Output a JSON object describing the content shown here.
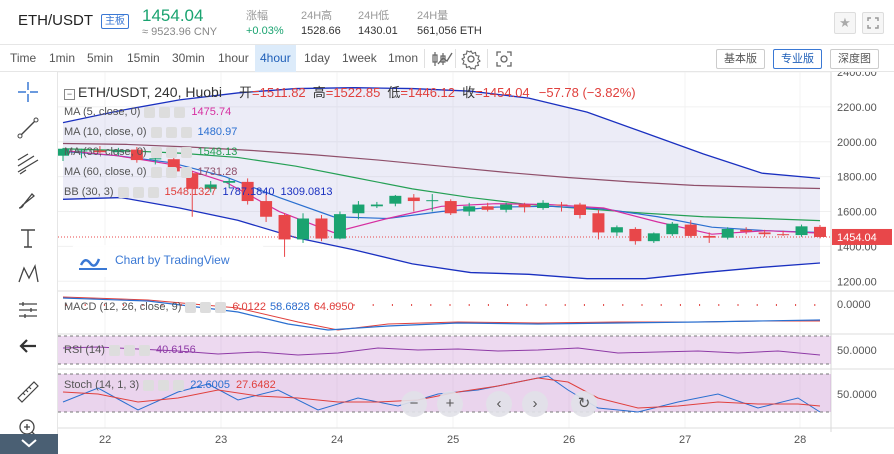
{
  "header": {
    "pair": "ETH/USDT",
    "badge": "主板",
    "price": "1454.04",
    "price_cny": "≈ 9523.96 CNY",
    "stats": [
      {
        "label": "涨幅",
        "value": "+0.03%",
        "color": "#1aa370"
      },
      {
        "label": "24H高",
        "value": "1528.66",
        "color": "#333333"
      },
      {
        "label": "24H低",
        "value": "1430.01",
        "color": "#333333"
      },
      {
        "label": "24H量",
        "value": "561,056 ETH",
        "color": "#333333"
      }
    ],
    "star_icon": "star-icon",
    "fullscreen_icon": "fullscreen-icon"
  },
  "toolbar": {
    "intervals": [
      "Time",
      "1min",
      "5min",
      "15min",
      "30min",
      "1hour",
      "4hour",
      "1day",
      "1week",
      "1mon"
    ],
    "active_interval": "4hour",
    "icons": [
      "candle-style-icon",
      "indicators-icon",
      "settings-gear-icon",
      "screenshot-icon"
    ],
    "views": [
      "基本版",
      "专业版",
      "深度图"
    ],
    "active_view": "专业版"
  },
  "left_tools": [
    "crosshair-icon",
    "trend-line-icon",
    "fib-icon",
    "brush-icon",
    "text-icon",
    "pattern-icon",
    "measure-icon",
    "back-arrow-icon",
    "ruler-icon",
    "zoom-in-icon",
    "collapse-icon"
  ],
  "legend": {
    "main": "ETH/USDT, 240, Huobi",
    "ohlc": {
      "open_label": "开",
      "open": "=1511.82",
      "high_label": "高",
      "high": "=1522.85",
      "low_label": "低",
      "low": "=1446.12",
      "close_label": "收",
      "close": "=1454.04",
      "change": "−57.78 (−3.82%)"
    },
    "ma5": {
      "label": "MA (5, close, 0)",
      "value": "1475.74",
      "color": "#d62ea0"
    },
    "ma10": {
      "label": "MA (10, close, 0)",
      "value": "1480.97",
      "color": "#2a6fd0"
    },
    "ma30": {
      "label": "MA (30, close, 0)",
      "value": "1548.13",
      "color": "#25a055"
    },
    "ma60": {
      "label": "MA (60, close, 0)",
      "value": "1731.28",
      "color": "#8f4f6a"
    },
    "bb": {
      "label": "BB (30, 3)",
      "v1": "1548.1327",
      "v2": "1787.1840",
      "v3": "1309.0813",
      "color": "#1a30c0"
    },
    "macd": {
      "label": "MACD (12, 26, close, 9)",
      "v1": "6.0122",
      "v2": "58.6828",
      "v3": "64.6950"
    },
    "rsi": {
      "label": "RSI (14)",
      "value": "40.6156"
    },
    "stoch": {
      "label": "Stoch (14, 1, 3)",
      "v1": "22.6005",
      "v2": "27.6482"
    }
  },
  "tradingview": "Chart by TradingView",
  "chart_data": {
    "type": "candlestick",
    "symbol": "ETH/USDT",
    "interval": "240",
    "exchange": "Huobi",
    "ylim": [
      1150,
      2400
    ],
    "y_ticks": [
      "2400.00",
      "2200.00",
      "2000.00",
      "1800.00",
      "1600.00",
      "1400.00",
      "1200.00"
    ],
    "x_ticks": [
      "22",
      "23",
      "24",
      "25",
      "26",
      "27",
      "28"
    ],
    "last_price_label": "1454.04",
    "candles": [
      {
        "o": 1920,
        "h": 1965,
        "l": 1890,
        "c": 1960
      },
      {
        "o": 1945,
        "h": 1960,
        "l": 1905,
        "c": 1950
      },
      {
        "o": 1950,
        "h": 1975,
        "l": 1935,
        "c": 1940
      },
      {
        "o": 1940,
        "h": 1965,
        "l": 1920,
        "c": 1950
      },
      {
        "o": 1955,
        "h": 1970,
        "l": 1880,
        "c": 1895
      },
      {
        "o": 1900,
        "h": 1915,
        "l": 1870,
        "c": 1905
      },
      {
        "o": 1900,
        "h": 1915,
        "l": 1800,
        "c": 1830
      },
      {
        "o": 1820,
        "h": 1830,
        "l": 1570,
        "c": 1730
      },
      {
        "o": 1730,
        "h": 1775,
        "l": 1710,
        "c": 1755
      },
      {
        "o": 1765,
        "h": 1790,
        "l": 1735,
        "c": 1775
      },
      {
        "o": 1770,
        "h": 1790,
        "l": 1640,
        "c": 1660
      },
      {
        "o": 1660,
        "h": 1700,
        "l": 1540,
        "c": 1570
      },
      {
        "o": 1580,
        "h": 1590,
        "l": 1340,
        "c": 1440
      },
      {
        "o": 1440,
        "h": 1590,
        "l": 1420,
        "c": 1560
      },
      {
        "o": 1560,
        "h": 1580,
        "l": 1430,
        "c": 1445
      },
      {
        "o": 1445,
        "h": 1600,
        "l": 1440,
        "c": 1585
      },
      {
        "o": 1590,
        "h": 1660,
        "l": 1555,
        "c": 1640
      },
      {
        "o": 1630,
        "h": 1655,
        "l": 1620,
        "c": 1640
      },
      {
        "o": 1645,
        "h": 1695,
        "l": 1630,
        "c": 1690
      },
      {
        "o": 1680,
        "h": 1700,
        "l": 1600,
        "c": 1660
      },
      {
        "o": 1665,
        "h": 1700,
        "l": 1600,
        "c": 1665
      },
      {
        "o": 1660,
        "h": 1670,
        "l": 1580,
        "c": 1590
      },
      {
        "o": 1600,
        "h": 1650,
        "l": 1575,
        "c": 1630
      },
      {
        "o": 1630,
        "h": 1650,
        "l": 1600,
        "c": 1610
      },
      {
        "o": 1610,
        "h": 1650,
        "l": 1595,
        "c": 1640
      },
      {
        "o": 1640,
        "h": 1650,
        "l": 1595,
        "c": 1625
      },
      {
        "o": 1620,
        "h": 1665,
        "l": 1610,
        "c": 1650
      },
      {
        "o": 1640,
        "h": 1655,
        "l": 1600,
        "c": 1635
      },
      {
        "o": 1640,
        "h": 1650,
        "l": 1560,
        "c": 1580
      },
      {
        "o": 1590,
        "h": 1610,
        "l": 1440,
        "c": 1480
      },
      {
        "o": 1480,
        "h": 1520,
        "l": 1460,
        "c": 1510
      },
      {
        "o": 1500,
        "h": 1510,
        "l": 1410,
        "c": 1430
      },
      {
        "o": 1430,
        "h": 1480,
        "l": 1420,
        "c": 1475
      },
      {
        "o": 1470,
        "h": 1540,
        "l": 1460,
        "c": 1530
      },
      {
        "o": 1525,
        "h": 1550,
        "l": 1450,
        "c": 1460
      },
      {
        "o": 1460,
        "h": 1480,
        "l": 1420,
        "c": 1450
      },
      {
        "o": 1450,
        "h": 1510,
        "l": 1440,
        "c": 1500
      },
      {
        "o": 1495,
        "h": 1510,
        "l": 1470,
        "c": 1485
      },
      {
        "o": 1480,
        "h": 1495,
        "l": 1455,
        "c": 1470
      },
      {
        "o": 1470,
        "h": 1490,
        "l": 1460,
        "c": 1465
      },
      {
        "o": 1465,
        "h": 1525,
        "l": 1455,
        "c": 1515
      },
      {
        "o": 1512,
        "h": 1523,
        "l": 1446,
        "c": 1454
      }
    ],
    "bb_upper": [
      2110,
      2180,
      2240,
      2280,
      2305,
      2310,
      2305,
      2290,
      2250,
      2170,
      2050,
      1930,
      1820,
      1790
    ],
    "bb_lower": [
      1670,
      1680,
      1620,
      1550,
      1450,
      1380,
      1300,
      1250,
      1240,
      1215,
      1215,
      1250,
      1280,
      1305
    ],
    "ma60": [
      1990,
      1985,
      1970,
      1950,
      1925,
      1895,
      1860,
      1825,
      1795,
      1770,
      1750,
      1740,
      1732
    ],
    "ma30": [
      1960,
      1950,
      1935,
      1910,
      1860,
      1795,
      1730,
      1680,
      1640,
      1615,
      1590,
      1570,
      1560,
      1548
    ],
    "ma10": [
      1945,
      1920,
      1880,
      1800,
      1680,
      1570,
      1560,
      1600,
      1625,
      1630,
      1615,
      1570,
      1510,
      1490,
      1480
    ],
    "ma5": [
      1950,
      1920,
      1870,
      1770,
      1600,
      1480,
      1560,
      1630,
      1645,
      1640,
      1620,
      1540,
      1470,
      1490,
      1476
    ],
    "macd_scale": [
      "0.0000"
    ],
    "rsi_scale": [
      "50.0000"
    ],
    "stoch_scale": [
      "50.0000"
    ]
  }
}
